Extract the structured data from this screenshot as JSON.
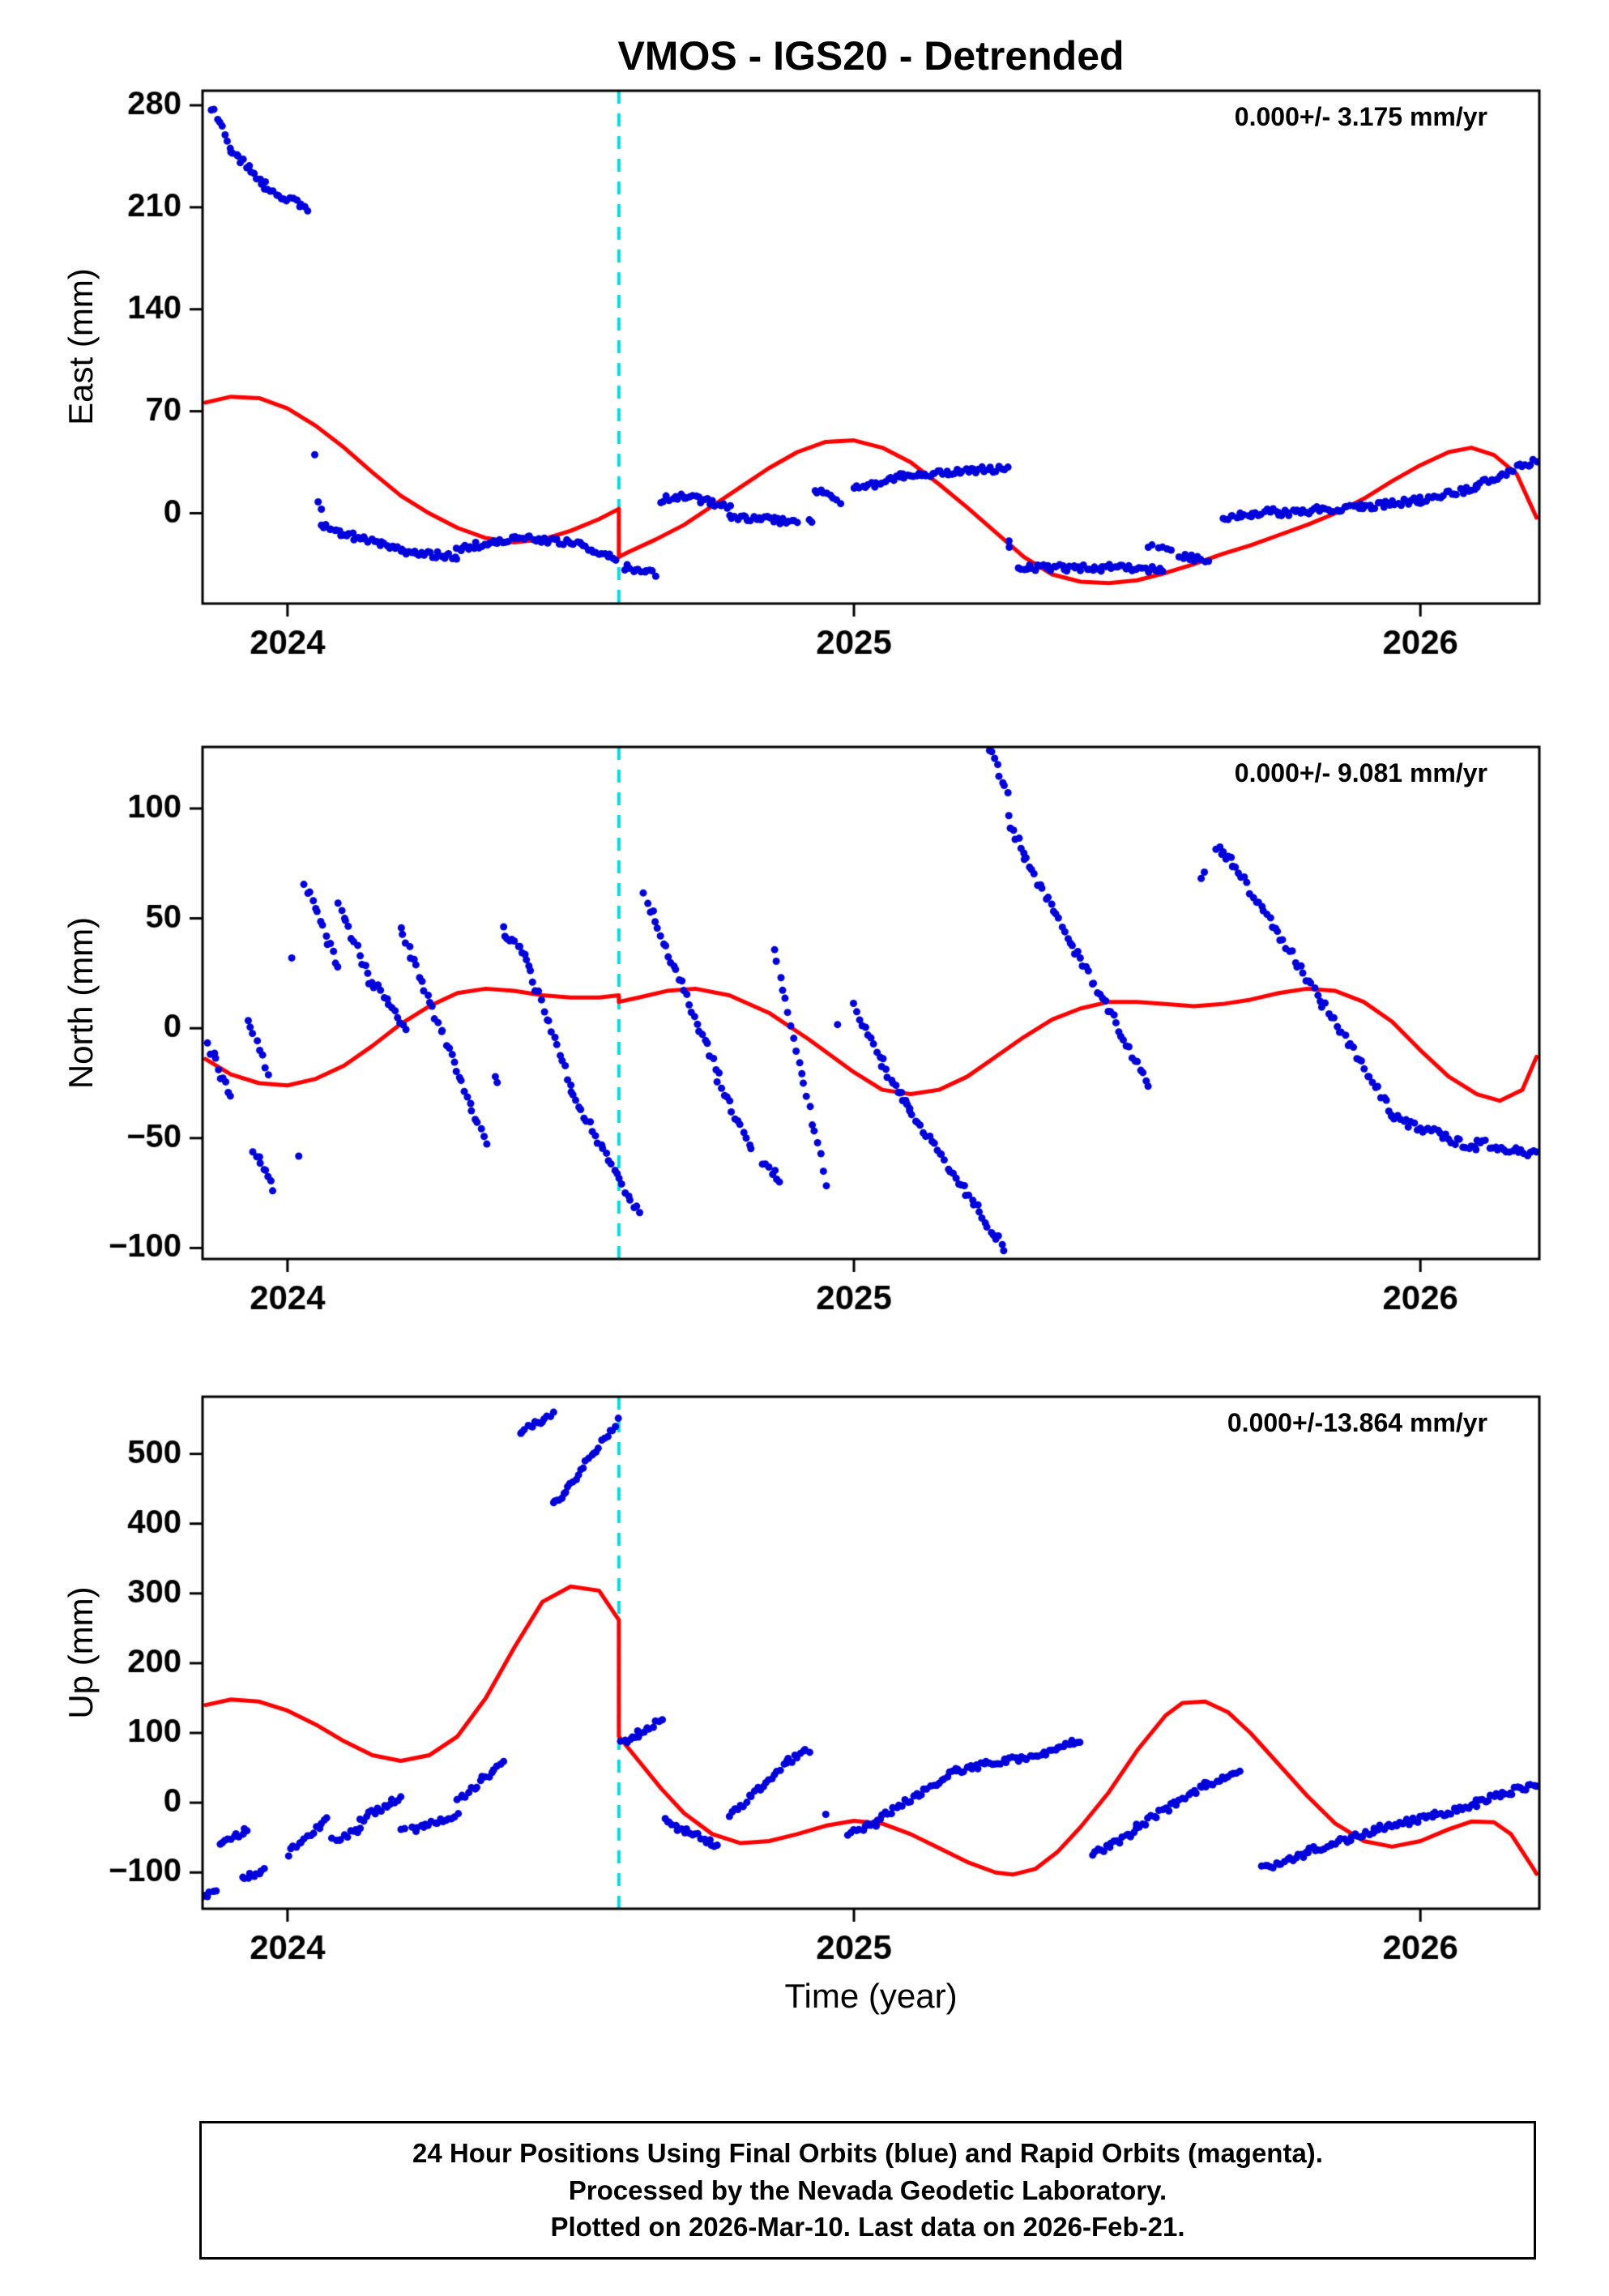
{
  "title": "VMOS - IGS20 - Detrended",
  "footer": {
    "lines": [
      "24 Hour Positions Using Final Orbits (blue) and Rapid Orbits (magenta).",
      "Processed by the Nevada Geodetic Laboratory.",
      "Plotted on 2026-Mar-10. Last data on 2026-Feb-21."
    ]
  },
  "chart": {
    "xlabel": "Time (year)",
    "xlim": [
      2023.85,
      2026.21
    ],
    "xticks": [
      2024,
      2025,
      2026
    ],
    "event_line_x": 2024.585,
    "grid": false,
    "colors": {
      "points": "#0000dd",
      "model": "#ff0000",
      "event_line": "#00dede",
      "axis": "#000000",
      "background": "#ffffff"
    },
    "point_radius": 4.5,
    "segments_note": "scatter_segments entries are [x_start, x_end, y_start, y_end, n_points] approximating daily GPS solutions"
  },
  "chart_data": [
    {
      "type": "scatter",
      "name": "east",
      "ylabel": "East (mm)",
      "annotation": "0.000+/- 3.175 mm/yr",
      "ylim": [
        -62,
        290
      ],
      "yticks": [
        0,
        70,
        140,
        210,
        280
      ],
      "jitter": 2.2,
      "model": [
        [
          2023.855,
          76
        ],
        [
          2023.9,
          80
        ],
        [
          2023.95,
          79
        ],
        [
          2024.0,
          72
        ],
        [
          2024.05,
          60
        ],
        [
          2024.1,
          45
        ],
        [
          2024.15,
          28
        ],
        [
          2024.2,
          12
        ],
        [
          2024.25,
          0
        ],
        [
          2024.3,
          -10
        ],
        [
          2024.35,
          -17
        ],
        [
          2024.4,
          -20
        ],
        [
          2024.45,
          -18
        ],
        [
          2024.5,
          -12
        ],
        [
          2024.55,
          -4
        ],
        [
          2024.585,
          3
        ],
        [
          2024.585,
          -30
        ],
        [
          2024.6,
          -27
        ],
        [
          2024.65,
          -18
        ],
        [
          2024.7,
          -8
        ],
        [
          2024.75,
          5
        ],
        [
          2024.8,
          18
        ],
        [
          2024.85,
          31
        ],
        [
          2024.9,
          42
        ],
        [
          2024.95,
          49
        ],
        [
          2025.0,
          50
        ],
        [
          2025.05,
          45
        ],
        [
          2025.1,
          35
        ],
        [
          2025.15,
          20
        ],
        [
          2025.2,
          4
        ],
        [
          2025.25,
          -13
        ],
        [
          2025.3,
          -30
        ],
        [
          2025.35,
          -42
        ],
        [
          2025.4,
          -47
        ],
        [
          2025.45,
          -48
        ],
        [
          2025.5,
          -46
        ],
        [
          2025.55,
          -41
        ],
        [
          2025.6,
          -35
        ],
        [
          2025.65,
          -28
        ],
        [
          2025.7,
          -22
        ],
        [
          2025.75,
          -15
        ],
        [
          2025.8,
          -8
        ],
        [
          2025.85,
          0
        ],
        [
          2025.9,
          10
        ],
        [
          2025.95,
          22
        ],
        [
          2026.0,
          33
        ],
        [
          2026.05,
          42
        ],
        [
          2026.09,
          45
        ],
        [
          2026.13,
          40
        ],
        [
          2026.17,
          27
        ],
        [
          2026.205,
          -3
        ]
      ],
      "scatter_segments": [
        [
          2023.865,
          2023.9,
          279,
          252,
          8
        ],
        [
          2023.9,
          2023.96,
          250,
          226,
          14
        ],
        [
          2023.96,
          2024.035,
          224,
          209,
          16
        ],
        [
          2024.048,
          2024.048,
          38,
          38,
          1
        ],
        [
          2024.055,
          2024.06,
          6,
          2,
          2
        ],
        [
          2024.06,
          2024.1,
          -8,
          -16,
          10
        ],
        [
          2024.1,
          2024.2,
          -14,
          -25,
          22
        ],
        [
          2024.2,
          2024.3,
          -26,
          -30,
          22
        ],
        [
          2024.3,
          2024.4,
          -24,
          -18,
          22
        ],
        [
          2024.4,
          2024.52,
          -16,
          -21,
          26
        ],
        [
          2024.52,
          2024.58,
          -23,
          -30,
          13
        ],
        [
          2024.595,
          2024.65,
          -37,
          -42,
          12
        ],
        [
          2024.66,
          2024.7,
          9,
          12,
          9
        ],
        [
          2024.7,
          2024.78,
          12,
          4,
          17
        ],
        [
          2024.78,
          2024.9,
          -2,
          -6,
          26
        ],
        [
          2024.92,
          2024.925,
          -6,
          -6,
          2
        ],
        [
          2024.93,
          2024.975,
          17,
          7,
          9
        ],
        [
          2025.0,
          2025.08,
          17,
          24,
          17
        ],
        [
          2025.08,
          2025.27,
          26,
          31,
          40
        ],
        [
          2025.272,
          2025.276,
          -20,
          -22,
          2
        ],
        [
          2025.29,
          2025.45,
          -37,
          -38,
          34
        ],
        [
          2025.45,
          2025.545,
          -36,
          -39,
          20
        ],
        [
          2025.52,
          2025.56,
          -22,
          -24,
          6
        ],
        [
          2025.575,
          2025.625,
          -30,
          -32,
          10
        ],
        [
          2025.65,
          2025.75,
          -3,
          2,
          21
        ],
        [
          2025.75,
          2025.9,
          0,
          5,
          32
        ],
        [
          2025.9,
          2026.0,
          4,
          9,
          21
        ],
        [
          2026.0,
          2026.1,
          9,
          18,
          21
        ],
        [
          2026.1,
          2026.16,
          20,
          28,
          13
        ],
        [
          2026.165,
          2026.205,
          30,
          36,
          9
        ]
      ]
    },
    {
      "type": "scatter",
      "name": "north",
      "ylabel": "North (mm)",
      "annotation": "0.000+/- 9.081 mm/yr",
      "ylim": [
        -105,
        128
      ],
      "yticks": [
        -100,
        -50,
        0,
        50,
        100
      ],
      "jitter": 2.0,
      "model": [
        [
          2023.855,
          -14
        ],
        [
          2023.9,
          -21
        ],
        [
          2023.95,
          -25
        ],
        [
          2024.0,
          -26
        ],
        [
          2024.05,
          -23
        ],
        [
          2024.1,
          -17
        ],
        [
          2024.15,
          -8
        ],
        [
          2024.2,
          2
        ],
        [
          2024.25,
          10
        ],
        [
          2024.3,
          16
        ],
        [
          2024.35,
          18
        ],
        [
          2024.4,
          17
        ],
        [
          2024.45,
          15
        ],
        [
          2024.5,
          14
        ],
        [
          2024.55,
          14
        ],
        [
          2024.585,
          15
        ],
        [
          2024.585,
          12
        ],
        [
          2024.62,
          14
        ],
        [
          2024.67,
          17
        ],
        [
          2024.72,
          18
        ],
        [
          2024.78,
          15
        ],
        [
          2024.85,
          7
        ],
        [
          2024.92,
          -5
        ],
        [
          2025.0,
          -20
        ],
        [
          2025.05,
          -28
        ],
        [
          2025.1,
          -30
        ],
        [
          2025.15,
          -28
        ],
        [
          2025.2,
          -22
        ],
        [
          2025.25,
          -13
        ],
        [
          2025.3,
          -4
        ],
        [
          2025.35,
          4
        ],
        [
          2025.4,
          9
        ],
        [
          2025.45,
          12
        ],
        [
          2025.5,
          12
        ],
        [
          2025.55,
          11
        ],
        [
          2025.6,
          10
        ],
        [
          2025.65,
          11
        ],
        [
          2025.7,
          13
        ],
        [
          2025.75,
          16
        ],
        [
          2025.8,
          18
        ],
        [
          2025.85,
          17
        ],
        [
          2025.9,
          12
        ],
        [
          2025.95,
          3
        ],
        [
          2026.0,
          -10
        ],
        [
          2026.05,
          -22
        ],
        [
          2026.1,
          -30
        ],
        [
          2026.14,
          -33
        ],
        [
          2026.18,
          -28
        ],
        [
          2026.205,
          -13
        ]
      ],
      "scatter_segments": [
        [
          2023.86,
          2023.88,
          -8,
          -18,
          5
        ],
        [
          2023.88,
          2023.9,
          -22,
          -30,
          5
        ],
        [
          2023.93,
          2023.965,
          2,
          -20,
          8
        ],
        [
          2023.94,
          2023.975,
          -55,
          -72,
          9
        ],
        [
          2024.008,
          2024.008,
          30,
          30,
          1
        ],
        [
          2024.02,
          2024.02,
          -60,
          -60,
          1
        ],
        [
          2024.03,
          2024.09,
          66,
          28,
          14
        ],
        [
          2024.09,
          2024.15,
          58,
          18,
          14
        ],
        [
          2024.15,
          2024.21,
          22,
          -2,
          13
        ],
        [
          2024.2,
          2024.35,
          46,
          -52,
          33
        ],
        [
          2024.368,
          2024.372,
          -22,
          -23,
          2
        ],
        [
          2024.38,
          2024.42,
          45,
          34,
          10
        ],
        [
          2024.42,
          2024.5,
          32,
          -25,
          18
        ],
        [
          2024.5,
          2024.62,
          -28,
          -85,
          26
        ],
        [
          2024.63,
          2024.76,
          60,
          -20,
          29
        ],
        [
          2024.76,
          2024.82,
          -25,
          -55,
          13
        ],
        [
          2024.84,
          2024.87,
          -60,
          -70,
          7
        ],
        [
          2024.86,
          2024.95,
          35,
          -70,
          20
        ],
        [
          2024.97,
          2024.97,
          0,
          0,
          1
        ],
        [
          2025.0,
          2025.05,
          10,
          -15,
          11
        ],
        [
          2025.05,
          2025.1,
          -18,
          -35,
          11
        ],
        [
          2025.08,
          2025.265,
          -30,
          -100,
          40
        ],
        [
          2025.24,
          2025.27,
          127,
          108,
          8
        ],
        [
          2025.272,
          2025.3,
          95,
          80,
          7
        ],
        [
          2025.3,
          2025.52,
          78,
          -25,
          47
        ],
        [
          2025.615,
          2025.62,
          70,
          70,
          2
        ],
        [
          2025.64,
          2025.67,
          83,
          75,
          8
        ],
        [
          2025.67,
          2025.95,
          75,
          -38,
          58
        ],
        [
          2025.95,
          2026.1,
          -40,
          -55,
          31
        ],
        [
          2026.1,
          2026.205,
          -52,
          -57,
          21
        ]
      ]
    },
    {
      "type": "scatter",
      "name": "up",
      "ylabel": "Up (mm)",
      "annotation": "0.000+/-13.864 mm/yr",
      "ylim": [
        -152,
        582
      ],
      "yticks": [
        -100,
        0,
        100,
        200,
        300,
        400,
        500
      ],
      "jitter": 4.5,
      "model": [
        [
          2023.855,
          140
        ],
        [
          2023.9,
          148
        ],
        [
          2023.95,
          145
        ],
        [
          2024.0,
          132
        ],
        [
          2024.05,
          112
        ],
        [
          2024.1,
          88
        ],
        [
          2024.15,
          68
        ],
        [
          2024.2,
          60
        ],
        [
          2024.25,
          68
        ],
        [
          2024.3,
          95
        ],
        [
          2024.35,
          150
        ],
        [
          2024.4,
          222
        ],
        [
          2024.45,
          288
        ],
        [
          2024.5,
          310
        ],
        [
          2024.55,
          304
        ],
        [
          2024.585,
          262
        ],
        [
          2024.585,
          95
        ],
        [
          2024.62,
          60
        ],
        [
          2024.66,
          20
        ],
        [
          2024.7,
          -15
        ],
        [
          2024.75,
          -45
        ],
        [
          2024.8,
          -58
        ],
        [
          2024.85,
          -55
        ],
        [
          2024.9,
          -45
        ],
        [
          2024.95,
          -33
        ],
        [
          2025.0,
          -26
        ],
        [
          2025.05,
          -30
        ],
        [
          2025.1,
          -45
        ],
        [
          2025.15,
          -65
        ],
        [
          2025.2,
          -85
        ],
        [
          2025.25,
          -100
        ],
        [
          2025.28,
          -103
        ],
        [
          2025.32,
          -95
        ],
        [
          2025.36,
          -70
        ],
        [
          2025.4,
          -35
        ],
        [
          2025.45,
          15
        ],
        [
          2025.5,
          75
        ],
        [
          2025.55,
          125
        ],
        [
          2025.58,
          143
        ],
        [
          2025.62,
          145
        ],
        [
          2025.66,
          130
        ],
        [
          2025.7,
          100
        ],
        [
          2025.75,
          55
        ],
        [
          2025.8,
          10
        ],
        [
          2025.85,
          -30
        ],
        [
          2025.9,
          -55
        ],
        [
          2025.95,
          -63
        ],
        [
          2026.0,
          -55
        ],
        [
          2026.05,
          -38
        ],
        [
          2026.09,
          -27
        ],
        [
          2026.13,
          -28
        ],
        [
          2026.16,
          -45
        ],
        [
          2026.2,
          -95
        ],
        [
          2026.205,
          -102
        ]
      ],
      "scatter_segments": [
        [
          2023.85,
          2023.872,
          -135,
          -127,
          6
        ],
        [
          2023.88,
          2023.93,
          -60,
          -38,
          11
        ],
        [
          2023.92,
          2023.96,
          -108,
          -95,
          9
        ],
        [
          2024.0,
          2024.07,
          -72,
          -25,
          15
        ],
        [
          2024.08,
          2024.13,
          -55,
          -38,
          11
        ],
        [
          2024.13,
          2024.2,
          -25,
          8,
          15
        ],
        [
          2024.2,
          2024.205,
          -40,
          -41,
          2
        ],
        [
          2024.22,
          2024.3,
          -38,
          -17,
          17
        ],
        [
          2024.3,
          2024.38,
          0,
          60,
          17
        ],
        [
          2024.41,
          2024.468,
          533,
          556,
          14
        ],
        [
          2024.468,
          2024.49,
          430,
          443,
          6
        ],
        [
          2024.49,
          2024.583,
          445,
          548,
          21
        ],
        [
          2024.59,
          2024.62,
          85,
          95,
          7
        ],
        [
          2024.62,
          2024.66,
          100,
          120,
          9
        ],
        [
          2024.665,
          2024.7,
          -20,
          -45,
          8
        ],
        [
          2024.7,
          2024.76,
          -40,
          -60,
          13
        ],
        [
          2024.78,
          2024.88,
          -20,
          55,
          21
        ],
        [
          2024.88,
          2024.92,
          58,
          75,
          9
        ],
        [
          2024.95,
          2024.952,
          -20,
          -20,
          1
        ],
        [
          2024.99,
          2025.04,
          -45,
          -30,
          11
        ],
        [
          2025.04,
          2025.18,
          -25,
          45,
          29
        ],
        [
          2025.18,
          2025.3,
          46,
          65,
          25
        ],
        [
          2025.3,
          2025.4,
          60,
          90,
          21
        ],
        [
          2025.42,
          2025.5,
          -75,
          -40,
          17
        ],
        [
          2025.5,
          2025.62,
          -35,
          25,
          25
        ],
        [
          2025.62,
          2025.68,
          25,
          45,
          13
        ],
        [
          2025.72,
          2025.8,
          -95,
          -73,
          17
        ],
        [
          2025.8,
          2025.92,
          -70,
          -40,
          25
        ],
        [
          2025.92,
          2026.02,
          -38,
          -20,
          21
        ],
        [
          2026.02,
          2026.1,
          -18,
          -5,
          17
        ],
        [
          2026.1,
          2026.16,
          0,
          15,
          13
        ],
        [
          2026.16,
          2026.205,
          18,
          25,
          10
        ]
      ]
    }
  ]
}
